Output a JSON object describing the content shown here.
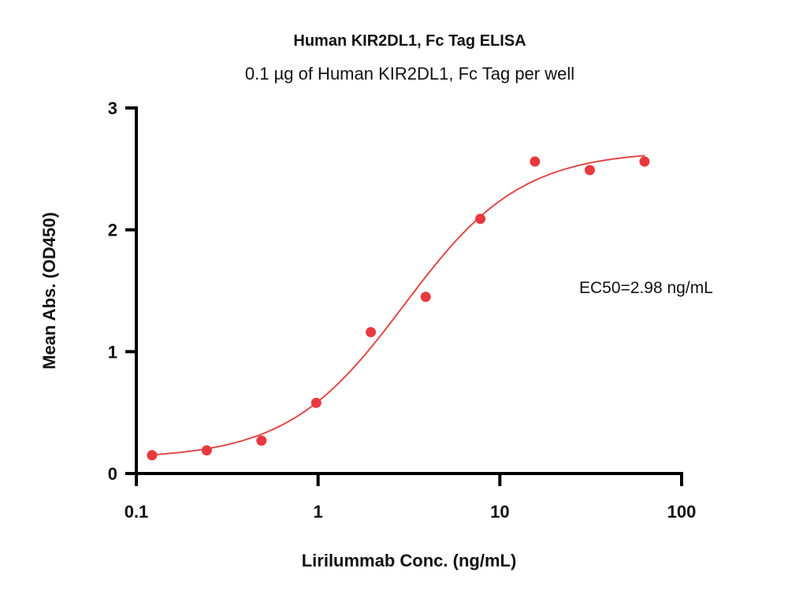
{
  "chart_data": {
    "type": "scatter",
    "title": "Human KIR2DL1, Fc Tag ELISA",
    "subtitle": "0.1 µg of Human KIR2DL1, Fc Tag per well",
    "xlabel": "Lirilummab Conc. (ng/mL)",
    "ylabel": "Mean Abs. (OD450)",
    "xscale": "log",
    "xlim": [
      0.1,
      100
    ],
    "ylim": [
      0,
      3
    ],
    "xticks": [
      0.1,
      1,
      10,
      100
    ],
    "xtick_labels": [
      "0.1",
      "1",
      "10",
      "100"
    ],
    "yticks": [
      0,
      1,
      2,
      3
    ],
    "ytick_labels": [
      "0",
      "1",
      "2",
      "3"
    ],
    "grid": false,
    "annotation": "EC50=2.98 ng/mL",
    "series": [
      {
        "name": "Human KIR2DL1, Fc Tag",
        "color": "#e8393f",
        "x": [
          0.122,
          0.244,
          0.488,
          0.977,
          1.95,
          3.91,
          7.81,
          15.6,
          31.25,
          62.5
        ],
        "y": [
          0.15,
          0.19,
          0.27,
          0.58,
          1.16,
          1.45,
          2.09,
          2.56,
          2.49,
          2.56
        ]
      }
    ],
    "fit": {
      "model": "4PL",
      "bottom": 0.12,
      "top": 2.65,
      "ec50": 2.98,
      "hill": 1.35,
      "color": "#e04a4a"
    }
  }
}
